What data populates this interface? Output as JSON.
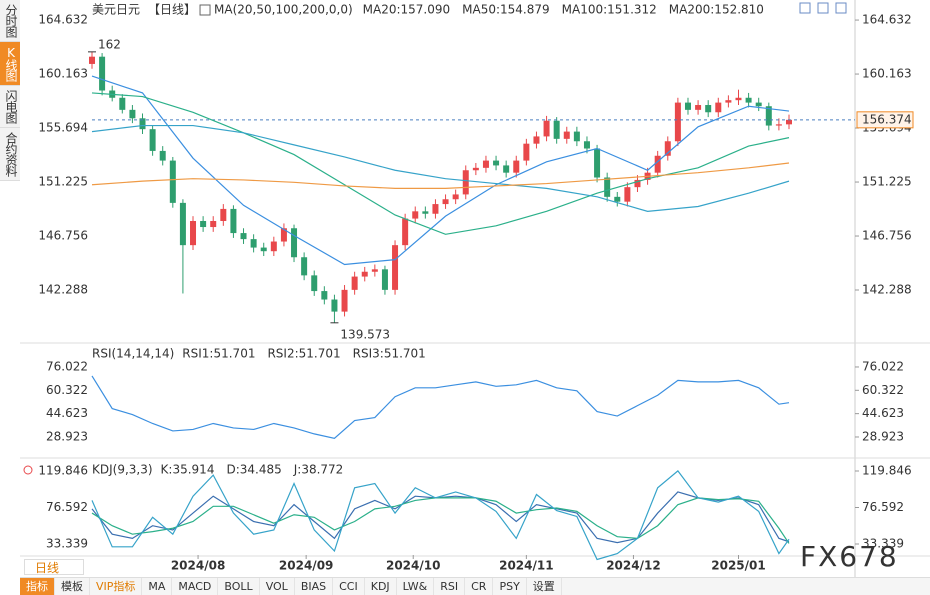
{
  "chart_data": [
    {
      "type": "candlestick",
      "title": "美元日元",
      "subtitle": "【日线】",
      "indicator": "MA(20,50,100,200,0,0)",
      "up_color": "#e8474a",
      "down_color": "#2e9e6e",
      "candles": [
        [
          161.0,
          162.0,
          160.6,
          161.6
        ],
        [
          161.6,
          161.9,
          158.4,
          158.8
        ],
        [
          158.8,
          159.2,
          157.9,
          158.2
        ],
        [
          158.2,
          158.5,
          156.9,
          157.2
        ],
        [
          157.2,
          157.6,
          156.1,
          156.5
        ],
        [
          156.5,
          156.9,
          155.2,
          155.6
        ],
        [
          155.6,
          155.9,
          153.4,
          153.8
        ],
        [
          153.8,
          154.2,
          152.6,
          153.0
        ],
        [
          153.0,
          153.3,
          149.1,
          149.5
        ],
        [
          149.5,
          149.8,
          142.0,
          146.0
        ],
        [
          146.0,
          148.4,
          145.6,
          148.0
        ],
        [
          148.0,
          148.4,
          147.1,
          147.5
        ],
        [
          147.5,
          148.4,
          147.1,
          148.0
        ],
        [
          148.0,
          149.4,
          147.6,
          149.0
        ],
        [
          149.0,
          149.3,
          146.6,
          147.0
        ],
        [
          147.0,
          147.4,
          146.1,
          146.5
        ],
        [
          146.5,
          146.9,
          145.4,
          145.8
        ],
        [
          145.8,
          146.2,
          145.1,
          145.5
        ],
        [
          145.5,
          146.7,
          145.1,
          146.3
        ],
        [
          146.3,
          147.8,
          145.9,
          147.4
        ],
        [
          147.4,
          147.7,
          144.6,
          145.0
        ],
        [
          145.0,
          145.4,
          143.1,
          143.5
        ],
        [
          143.5,
          143.9,
          141.8,
          142.2
        ],
        [
          142.2,
          142.6,
          141.1,
          141.5
        ],
        [
          141.5,
          141.9,
          139.573,
          140.5
        ],
        [
          140.5,
          142.7,
          140.1,
          142.3
        ],
        [
          142.3,
          143.8,
          141.9,
          143.4
        ],
        [
          143.4,
          144.2,
          143.0,
          143.8
        ],
        [
          143.8,
          144.4,
          143.4,
          144.0
        ],
        [
          144.0,
          144.3,
          141.9,
          142.3
        ],
        [
          142.3,
          146.4,
          141.9,
          146.0
        ],
        [
          146.0,
          148.6,
          145.6,
          148.2
        ],
        [
          148.2,
          149.2,
          147.8,
          148.8
        ],
        [
          148.8,
          149.2,
          148.2,
          148.6
        ],
        [
          148.6,
          149.8,
          148.2,
          149.4
        ],
        [
          149.4,
          150.2,
          149.0,
          149.8
        ],
        [
          149.8,
          150.6,
          149.4,
          150.2
        ],
        [
          150.2,
          152.6,
          149.8,
          152.2
        ],
        [
          152.2,
          152.8,
          151.8,
          152.4
        ],
        [
          152.4,
          153.4,
          152.0,
          153.0
        ],
        [
          153.0,
          153.4,
          152.2,
          152.6
        ],
        [
          152.6,
          153.0,
          151.6,
          152.0
        ],
        [
          152.0,
          153.4,
          151.6,
          153.0
        ],
        [
          153.0,
          154.8,
          152.6,
          154.4
        ],
        [
          154.4,
          155.4,
          154.0,
          155.0
        ],
        [
          155.0,
          156.7,
          154.6,
          156.3
        ],
        [
          156.3,
          156.6,
          154.4,
          154.8
        ],
        [
          154.8,
          155.8,
          154.4,
          155.4
        ],
        [
          155.4,
          155.8,
          154.2,
          154.6
        ],
        [
          154.6,
          155.0,
          153.6,
          154.0
        ],
        [
          154.0,
          154.3,
          151.2,
          151.6
        ],
        [
          151.6,
          152.0,
          149.6,
          150.0
        ],
        [
          150.0,
          150.4,
          149.2,
          149.6
        ],
        [
          149.6,
          151.2,
          149.2,
          150.8
        ],
        [
          150.8,
          151.8,
          150.4,
          151.4
        ],
        [
          151.4,
          152.4,
          151.0,
          152.0
        ],
        [
          152.0,
          153.8,
          151.6,
          153.4
        ],
        [
          153.4,
          155.0,
          153.0,
          154.6
        ],
        [
          154.6,
          158.2,
          154.2,
          157.8
        ],
        [
          157.8,
          158.2,
          156.8,
          157.2
        ],
        [
          157.2,
          158.0,
          156.8,
          157.6
        ],
        [
          157.6,
          158.0,
          156.6,
          157.0
        ],
        [
          157.0,
          158.2,
          156.6,
          157.8
        ],
        [
          157.8,
          158.4,
          157.4,
          158.0
        ],
        [
          158.0,
          158.871,
          157.6,
          158.2
        ],
        [
          158.2,
          158.6,
          157.4,
          157.8
        ],
        [
          157.8,
          158.2,
          157.1,
          157.5
        ],
        [
          157.5,
          157.8,
          155.5,
          155.9
        ],
        [
          155.9,
          156.5,
          155.5,
          156.0
        ],
        [
          156.0,
          156.8,
          155.6,
          156.374
        ]
      ],
      "x": [
        0,
        5,
        10,
        15,
        20,
        25,
        30,
        35,
        40,
        45,
        50,
        55,
        60,
        65,
        69
      ],
      "series": [
        {
          "name": "MA20:157.090",
          "color": "#3b8fe0",
          "values": [
            160.0,
            158.6,
            153.2,
            149.3,
            146.8,
            144.4,
            144.8,
            148.4,
            151.0,
            152.9,
            154.0,
            152.2,
            155.8,
            157.5,
            157.1
          ]
        },
        {
          "name": "MA50:154.879",
          "color": "#2bb08a",
          "values": [
            158.6,
            158.3,
            157.0,
            155.3,
            153.5,
            151.0,
            148.5,
            146.9,
            147.6,
            148.8,
            150.3,
            151.5,
            152.4,
            154.2,
            154.9
          ]
        },
        {
          "name": "MA100:151.312",
          "color": "#36a3c9",
          "values": [
            155.4,
            155.9,
            155.9,
            155.3,
            154.3,
            153.3,
            152.2,
            151.5,
            151.1,
            150.7,
            150.0,
            148.8,
            149.2,
            150.3,
            151.3
          ]
        },
        {
          "name": "MA200:152.810",
          "color": "#ef9a45",
          "values": [
            151.0,
            151.3,
            151.5,
            151.4,
            151.2,
            150.9,
            150.7,
            150.7,
            150.9,
            151.1,
            151.4,
            151.7,
            152.0,
            152.4,
            152.8
          ]
        }
      ],
      "ylim": [
        138.15,
        165.63
      ],
      "yticks": [
        164.632,
        160.163,
        155.694,
        151.225,
        146.756,
        142.288
      ]
    },
    {
      "type": "line",
      "title": "RSI(14,14,14)",
      "x": [
        0,
        2,
        4,
        6,
        8,
        10,
        12,
        14,
        16,
        18,
        20,
        22,
        24,
        26,
        28,
        30,
        32,
        34,
        36,
        38,
        40,
        42,
        44,
        46,
        48,
        50,
        52,
        54,
        56,
        58,
        60,
        62,
        64,
        66,
        68,
        69
      ],
      "series": [
        {
          "name": "RSI1:51.701",
          "color": "#3b8fe0",
          "values": [
            70,
            48,
            44,
            38,
            33,
            34,
            38,
            35,
            34,
            38,
            35,
            31,
            28,
            40,
            42,
            56,
            62,
            62,
            64,
            66,
            63,
            64,
            67,
            62,
            60,
            46,
            43,
            50,
            57,
            67,
            66,
            66,
            67,
            62,
            51,
            52
          ]
        }
      ],
      "labels": [
        {
          "text": "RSI2:51.701",
          "color": "#2bb08a"
        },
        {
          "text": "RSI3:51.701",
          "color": "#36a3c9"
        }
      ],
      "ylim": [
        16.8,
        90.8
      ],
      "yticks": [
        76.022,
        60.322,
        44.623,
        28.923
      ]
    },
    {
      "type": "line",
      "title": "KDJ(9,3,3)",
      "x": [
        0,
        2,
        4,
        6,
        8,
        10,
        12,
        14,
        16,
        18,
        20,
        22,
        24,
        26,
        28,
        30,
        32,
        34,
        36,
        38,
        40,
        42,
        44,
        46,
        48,
        50,
        52,
        54,
        56,
        58,
        60,
        62,
        64,
        66,
        68,
        69
      ],
      "series": [
        {
          "name": "K:35.914",
          "color": "#3b6fb0",
          "values": [
            75,
            45,
            40,
            55,
            50,
            70,
            90,
            75,
            60,
            55,
            80,
            60,
            40,
            75,
            85,
            75,
            90,
            88,
            90,
            88,
            80,
            60,
            80,
            75,
            70,
            40,
            35,
            40,
            70,
            95,
            88,
            85,
            88,
            80,
            40,
            36
          ]
        },
        {
          "name": "D:34.485",
          "color": "#2bb08a",
          "values": [
            70,
            55,
            45,
            48,
            52,
            60,
            78,
            78,
            68,
            58,
            68,
            65,
            50,
            60,
            75,
            78,
            85,
            88,
            88,
            88,
            84,
            70,
            74,
            76,
            72,
            55,
            42,
            40,
            55,
            80,
            88,
            86,
            87,
            84,
            52,
            34
          ]
        },
        {
          "name": "J:38.772",
          "color": "#36a3c9",
          "values": [
            85,
            30,
            30,
            65,
            45,
            90,
            115,
            70,
            45,
            50,
            105,
            50,
            25,
            100,
            105,
            70,
            100,
            88,
            95,
            88,
            72,
            40,
            92,
            73,
            66,
            15,
            22,
            40,
            100,
            120,
            88,
            83,
            90,
            72,
            22,
            39
          ]
        }
      ],
      "xticks": [
        {
          "value": 10.5,
          "label": "2024/08"
        },
        {
          "value": 21.2,
          "label": "2024/09"
        },
        {
          "value": 31.8,
          "label": "2024/10"
        },
        {
          "value": 43,
          "label": "2024/11"
        },
        {
          "value": 53.6,
          "label": "2024/12"
        },
        {
          "value": 64,
          "label": "2025/01"
        }
      ],
      "ylim": [
        20.3,
        132.9
      ],
      "yticks": [
        119.846,
        76.592,
        33.339
      ]
    }
  ],
  "ui": {
    "sidebar": [
      "分时图",
      "K线图",
      "闪电图",
      "合约资料"
    ],
    "period": "日线",
    "toolbar": [
      "指标",
      "模板",
      "VIP指标",
      "MA",
      "MACD",
      "BOLL",
      "VOL",
      "BIAS",
      "CCI",
      "KDJ",
      "LW&",
      "RSI",
      "CR",
      "PSY",
      "设置"
    ],
    "watermark": "FX678"
  }
}
